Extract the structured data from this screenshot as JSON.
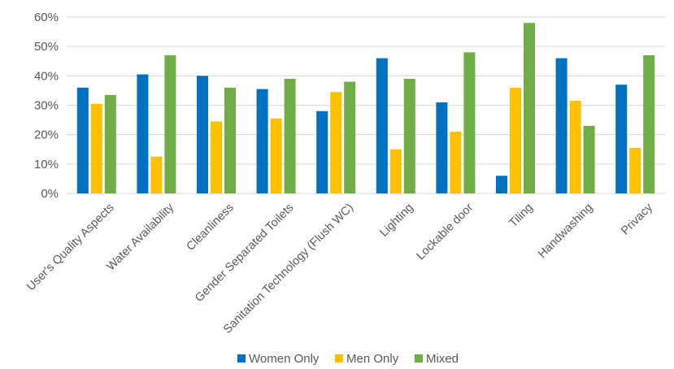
{
  "chart_data": {
    "type": "bar",
    "title": "",
    "xlabel": "",
    "ylabel": "",
    "ylim": [
      0,
      60
    ],
    "y_ticks": [
      0,
      10,
      20,
      30,
      40,
      50,
      60
    ],
    "y_tick_labels": [
      "0%",
      "10%",
      "20%",
      "30%",
      "40%",
      "50%",
      "60%"
    ],
    "grid": true,
    "legend_position": "bottom",
    "categories": [
      "User's Quality Aspects",
      "Water Availability",
      "Cleanliness",
      "Gender Separated Toilets",
      "Sanitation Technology (Flush WC)",
      "Lighting",
      "Lockable door",
      "Tiling",
      "Handwashing",
      "Privacy"
    ],
    "series": [
      {
        "name": "Women Only",
        "color": "#0070C0",
        "values": [
          36,
          40.5,
          40,
          35.5,
          28,
          46,
          31,
          6,
          46,
          37
        ]
      },
      {
        "name": "Men Only",
        "color": "#FFC000",
        "values": [
          30.5,
          12.5,
          24.5,
          25.5,
          34.5,
          15,
          21,
          36,
          31.5,
          15.5
        ]
      },
      {
        "name": "Mixed",
        "color": "#70AD47",
        "values": [
          33.5,
          47,
          36,
          39,
          38,
          39,
          48,
          58,
          23,
          47
        ]
      }
    ]
  }
}
